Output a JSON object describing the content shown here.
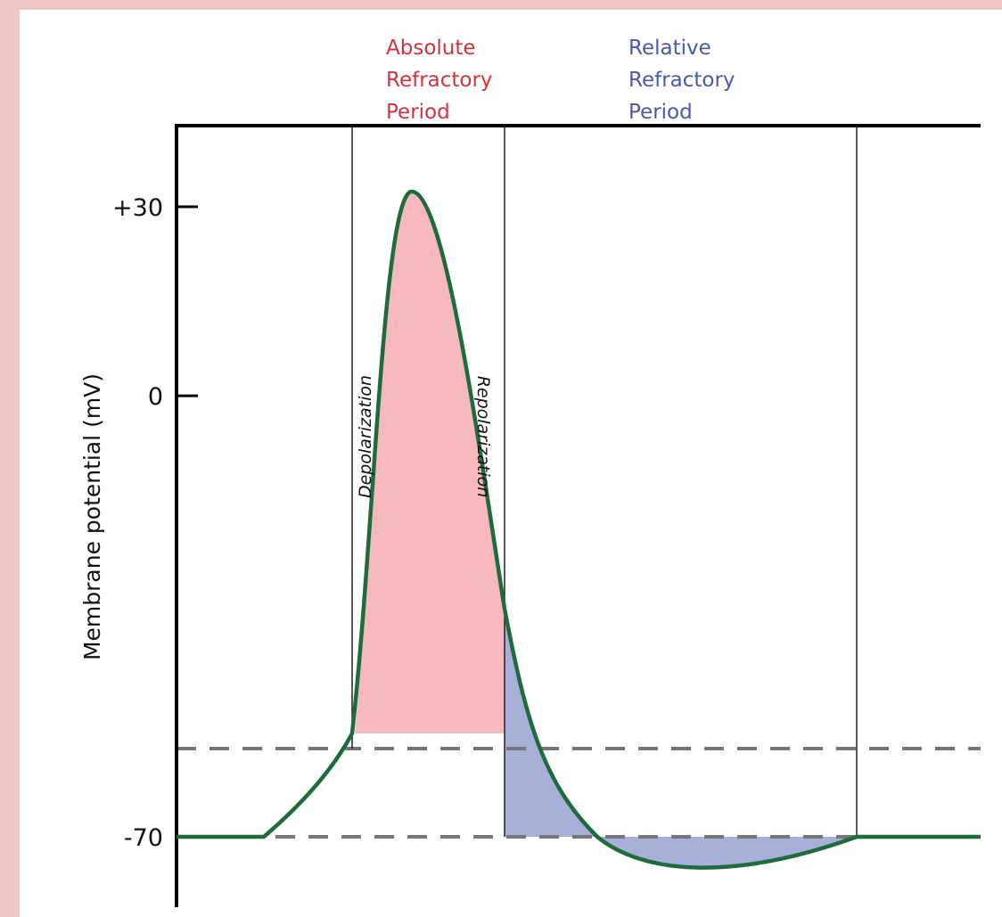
{
  "chart_data": {
    "type": "line",
    "ylabel": "Membrane potential (mV)",
    "y_ticks": [
      {
        "value": 30,
        "label": "+30"
      },
      {
        "value": 0,
        "label": "0"
      },
      {
        "value": -70,
        "label": "-70"
      }
    ],
    "ylim": [
      -79,
      38
    ],
    "headers": {
      "absolute": {
        "lines": [
          "Absolute",
          "Refractory",
          "Period"
        ],
        "color": "#d0343e"
      },
      "relative": {
        "lines": [
          "Relative",
          "Refractory",
          "Period"
        ],
        "color": "#4a5aa6"
      }
    },
    "phase_labels": [
      "Depolarization",
      "Repolarization"
    ],
    "reference_lines": [
      -56,
      -70
    ],
    "colors": {
      "curve": "#1e6b3c",
      "absolute_fill": "#f7b9bd",
      "relative_fill": "#a7b0d8",
      "dashed": "#777777",
      "background": "#f2c6c6"
    }
  }
}
